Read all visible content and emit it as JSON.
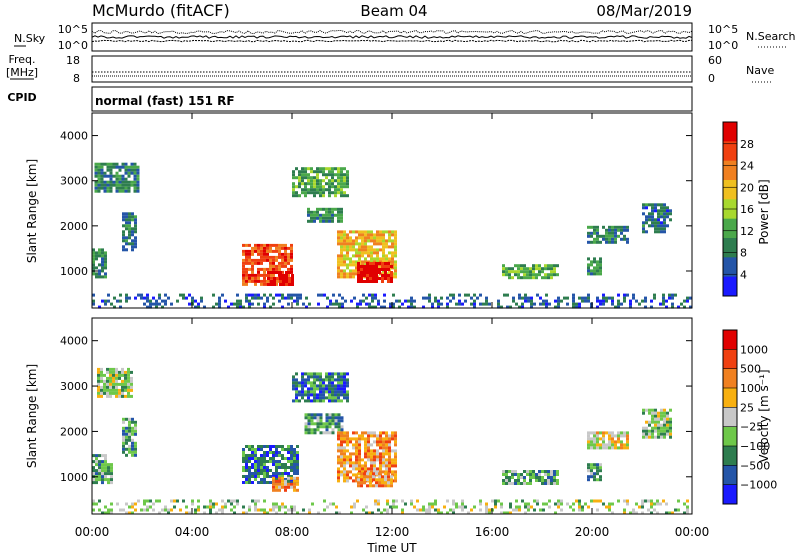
{
  "header": {
    "station": "McMurdo (fitACF)",
    "beam": "Beam 04",
    "date": "08/Mar/2019"
  },
  "noise_panel": {
    "left_label": "N.Sky",
    "right_label": "N.Search",
    "left_ticks": [
      "10^5",
      "10^0"
    ],
    "right_ticks": [
      "10^5",
      "10^0"
    ]
  },
  "freq_panel": {
    "left_label_1": "Freq.",
    "left_label_2": "[MHz]",
    "right_label": "Nave",
    "left_ticks": [
      "18",
      "8"
    ],
    "right_ticks": [
      "60",
      "0"
    ],
    "cpid_label": "CPID"
  },
  "cpid_panel": {
    "text": "normal (fast) 151 RF"
  },
  "colors": {
    "power_scale": [
      "#1a1aff",
      "#2455a8",
      "#2e7d4f",
      "#4aa84a",
      "#a8d82e",
      "#f0c020",
      "#f08020",
      "#f04010",
      "#e00000"
    ],
    "velocity_scale": [
      "#1a1aff",
      "#2455a8",
      "#2e7d4f",
      "#6ec84a",
      "#c8c8c8",
      "#f8b010",
      "#f08020",
      "#f04010",
      "#e00000"
    ]
  },
  "chart_data": [
    {
      "type": "heatmap",
      "name": "power",
      "xlabel": "",
      "ylabel": "Slant Range [km]",
      "x_ticks": [
        "00:00",
        "04:00",
        "08:00",
        "12:00",
        "16:00",
        "20:00",
        "00:00"
      ],
      "x_range_hours": [
        0,
        24
      ],
      "y_ticks": [
        1000,
        2000,
        3000,
        4000
      ],
      "y_range_km": [
        180,
        4500
      ],
      "colorbar": {
        "label": "Power [dB]",
        "ticks": [
          "28",
          "24",
          "20",
          "16",
          "12",
          "8",
          "4"
        ],
        "range": [
          0,
          32
        ]
      },
      "blobs": [
        {
          "t0": 0.0,
          "t1": 0.6,
          "r0": 900,
          "r1": 1500,
          "v": 10
        },
        {
          "t0": 0.1,
          "t1": 1.8,
          "r0": 2800,
          "r1": 3400,
          "v": 9
        },
        {
          "t0": 1.2,
          "t1": 1.8,
          "r0": 1500,
          "r1": 2300,
          "v": 8
        },
        {
          "t0": 6.0,
          "t1": 8.0,
          "r0": 700,
          "r1": 1600,
          "v": 26
        },
        {
          "t0": 7.0,
          "t1": 8.0,
          "r0": 700,
          "r1": 1000,
          "v": 31
        },
        {
          "t0": 8.6,
          "t1": 10.0,
          "r0": 2100,
          "r1": 2400,
          "v": 10
        },
        {
          "t0": 8.0,
          "t1": 10.2,
          "r0": 2700,
          "r1": 3300,
          "v": 12
        },
        {
          "t0": 9.8,
          "t1": 12.2,
          "r0": 900,
          "r1": 1900,
          "v": 20
        },
        {
          "t0": 10.6,
          "t1": 12.0,
          "r0": 800,
          "r1": 1200,
          "v": 30
        },
        {
          "t0": 16.4,
          "t1": 18.6,
          "r0": 850,
          "r1": 1150,
          "v": 12
        },
        {
          "t0": 19.8,
          "t1": 20.4,
          "r0": 950,
          "r1": 1300,
          "v": 10
        },
        {
          "t0": 19.8,
          "t1": 21.4,
          "r0": 1650,
          "r1": 2000,
          "v": 8
        },
        {
          "t0": 22.0,
          "t1": 23.2,
          "r0": 1900,
          "r1": 2500,
          "v": 7
        },
        {
          "t0": 0.0,
          "t1": 24.0,
          "r0": 180,
          "r1": 500,
          "v": 6
        }
      ]
    },
    {
      "type": "heatmap",
      "name": "velocity",
      "xlabel": "Time UT",
      "ylabel": "Slant Range [km]",
      "x_ticks": [
        "00:00",
        "04:00",
        "08:00",
        "12:00",
        "16:00",
        "20:00",
        "00:00"
      ],
      "x_range_hours": [
        0,
        24
      ],
      "y_ticks": [
        1000,
        2000,
        3000,
        4000
      ],
      "y_range_km": [
        180,
        4500
      ],
      "colorbar": {
        "label": "Velocity [m s⁻¹]",
        "ticks": [
          "1000",
          "500",
          "100",
          "25",
          "−25",
          "−100",
          "−500",
          "−1000"
        ],
        "range": [
          -1500,
          1500
        ]
      },
      "blobs": [
        {
          "t0": 0.0,
          "t1": 0.8,
          "r0": 900,
          "r1": 1500,
          "v": 3
        },
        {
          "t0": 0.2,
          "t1": 1.6,
          "r0": 2800,
          "r1": 3400,
          "v": 4
        },
        {
          "t0": 1.2,
          "t1": 1.8,
          "r0": 1500,
          "r1": 2300,
          "v": 3
        },
        {
          "t0": 6.0,
          "t1": 8.2,
          "r0": 900,
          "r1": 1700,
          "v": 2
        },
        {
          "t0": 7.2,
          "t1": 8.2,
          "r0": 700,
          "r1": 1000,
          "v": 6
        },
        {
          "t0": 8.5,
          "t1": 10.0,
          "r0": 2000,
          "r1": 2400,
          "v": 3
        },
        {
          "t0": 8.0,
          "t1": 10.2,
          "r0": 2700,
          "r1": 3300,
          "v": 2
        },
        {
          "t0": 9.8,
          "t1": 12.2,
          "r0": 900,
          "r1": 2000,
          "v": 6
        },
        {
          "t0": 10.6,
          "t1": 12.0,
          "r0": 800,
          "r1": 1100,
          "v": 6
        },
        {
          "t0": 16.4,
          "t1": 18.6,
          "r0": 850,
          "r1": 1150,
          "v": 3
        },
        {
          "t0": 19.8,
          "t1": 20.4,
          "r0": 950,
          "r1": 1300,
          "v": 3
        },
        {
          "t0": 19.8,
          "t1": 21.4,
          "r0": 1650,
          "r1": 2000,
          "v": 5
        },
        {
          "t0": 22.0,
          "t1": 23.2,
          "r0": 1900,
          "r1": 2500,
          "v": 4
        },
        {
          "t0": 0.0,
          "t1": 24.0,
          "r0": 180,
          "r1": 500,
          "v": 4
        }
      ]
    }
  ]
}
